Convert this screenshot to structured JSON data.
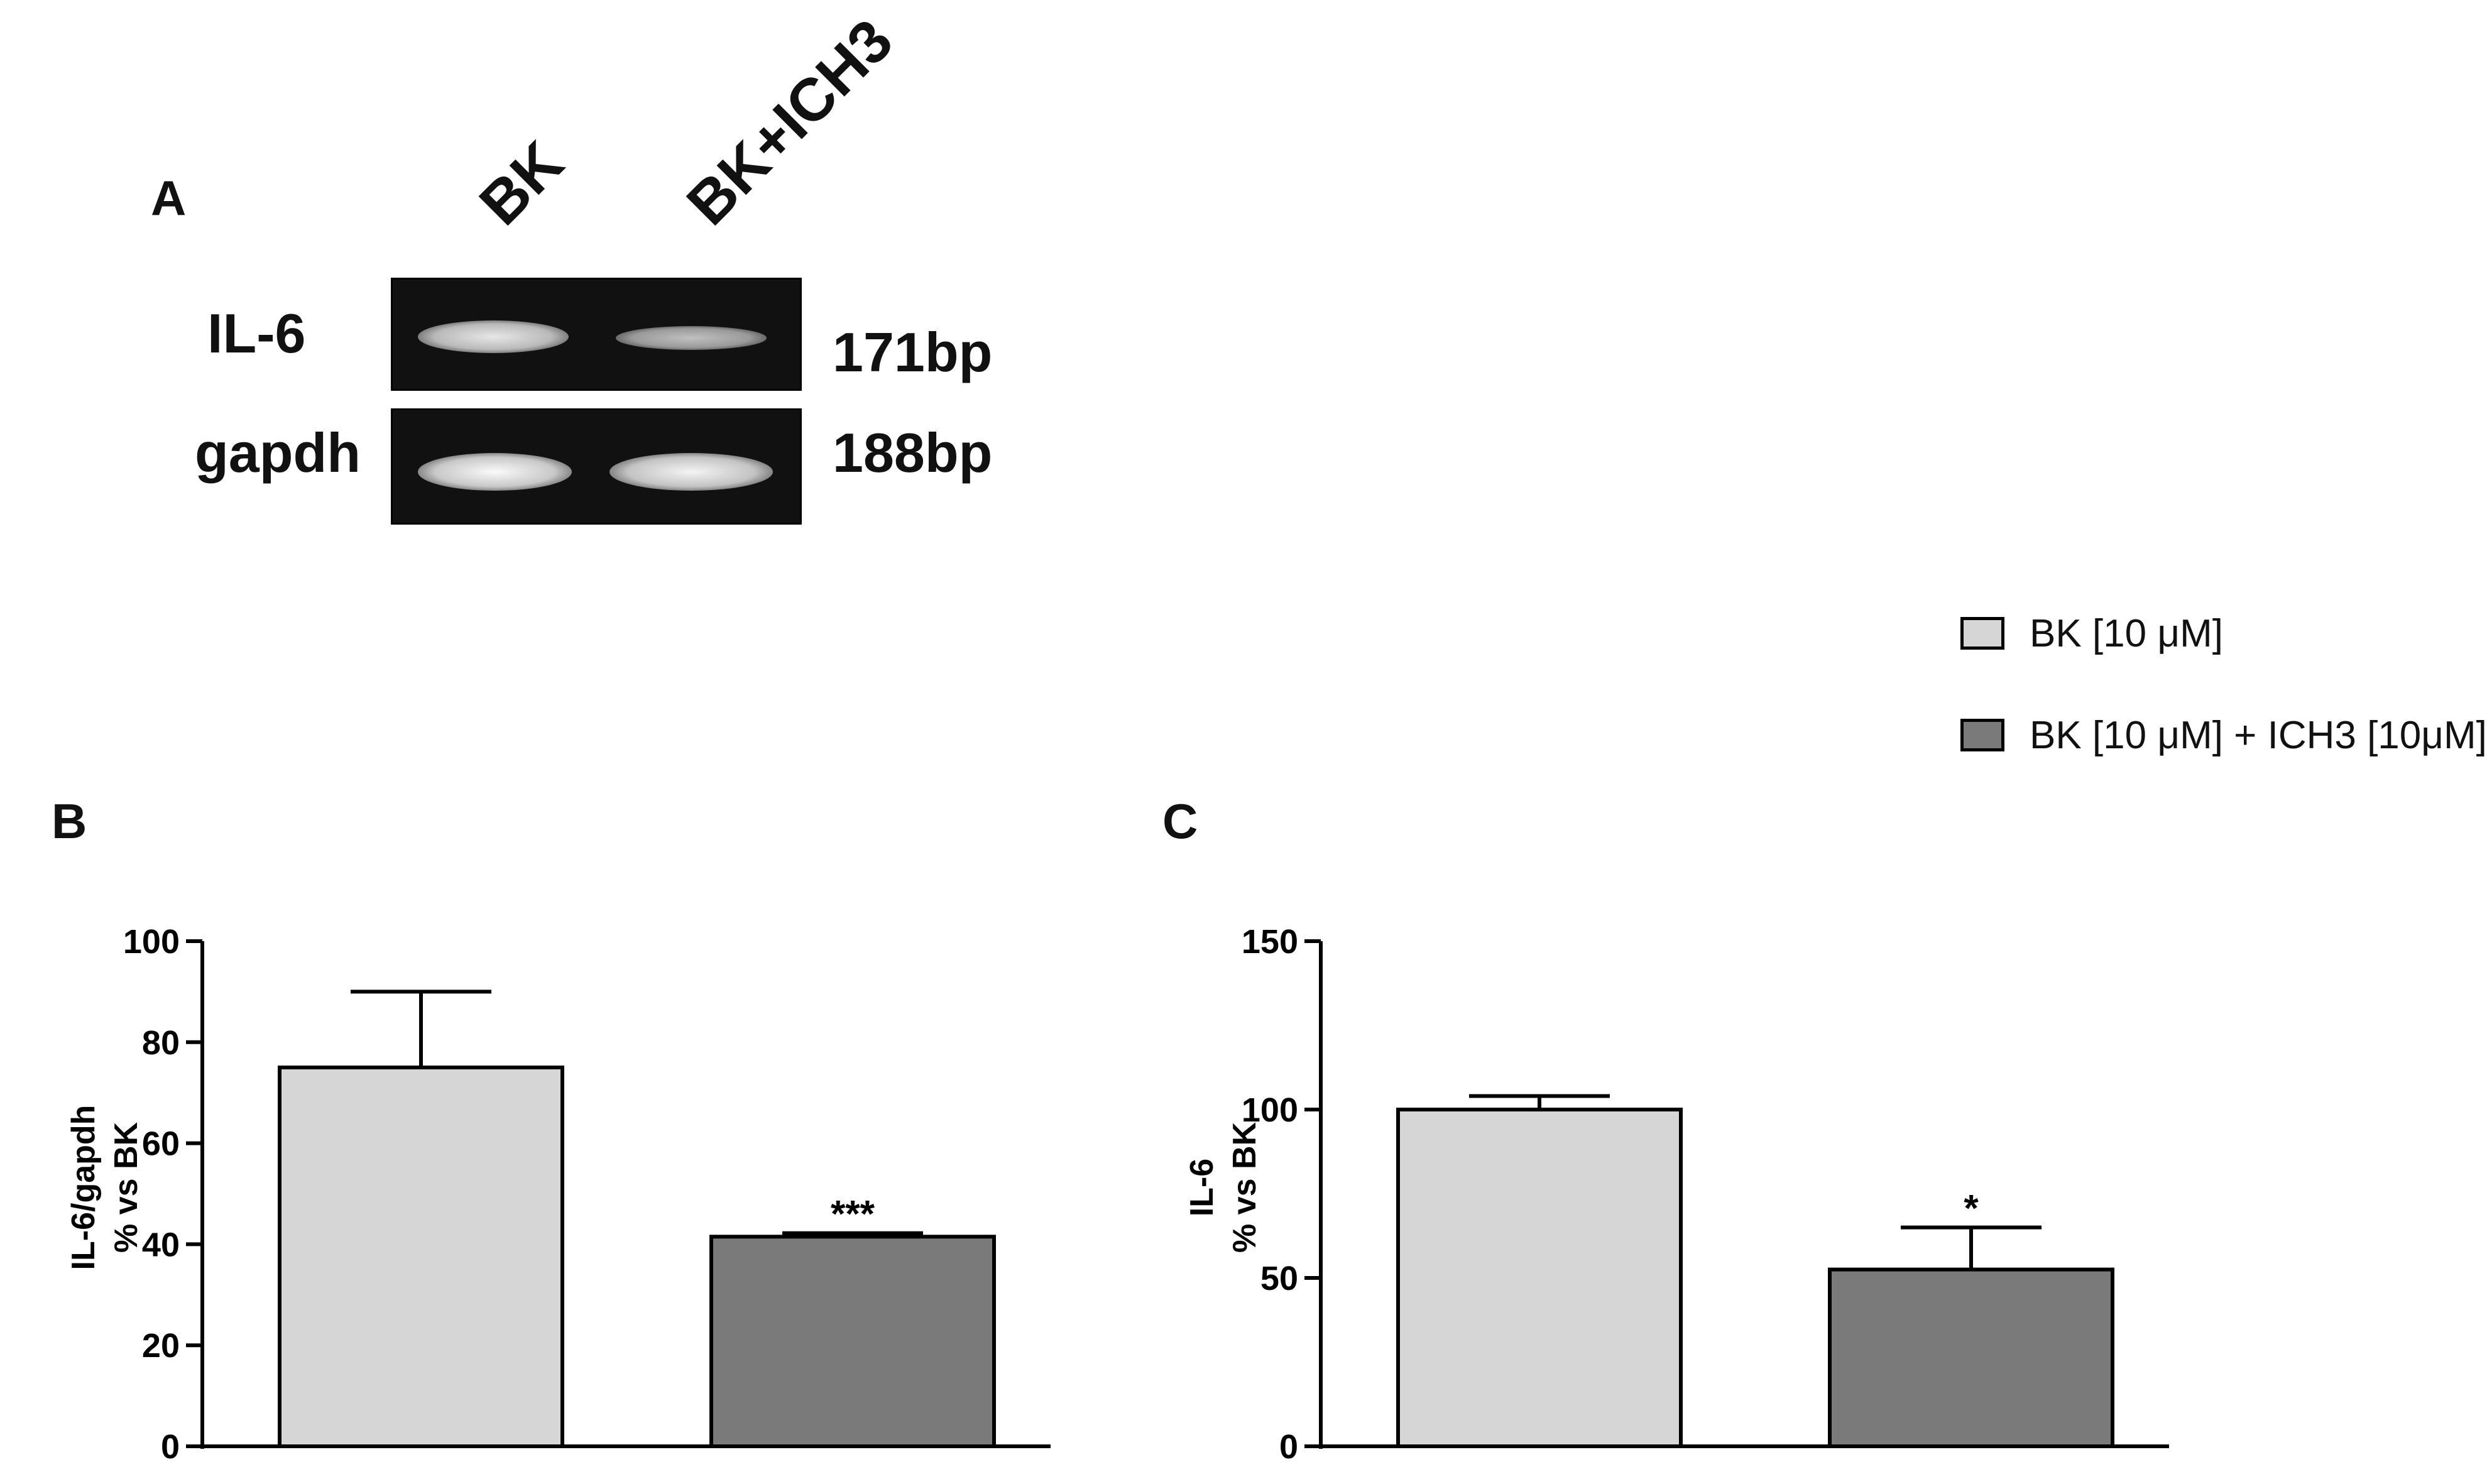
{
  "panel_a": {
    "letter": "A",
    "lanes": [
      "BK",
      "BK+ICH3"
    ],
    "rows": [
      {
        "gene": "IL-6",
        "size": "171bp",
        "intensities": [
          0.85,
          0.55
        ]
      },
      {
        "gene": "gapdh",
        "size": "188bp",
        "intensities": [
          1.0,
          0.95
        ]
      }
    ]
  },
  "legend": {
    "items": [
      {
        "label": "BK  [10 μM]",
        "color": "#d6d6d6"
      },
      {
        "label": "BK  [10 μM] + ICH3 [10μM]",
        "color": "#7a7a7a"
      }
    ]
  },
  "chart_data": [
    {
      "panel": "B",
      "type": "bar",
      "categories": [
        "BK [10 μM]",
        "BK [10 μM] + ICH3 [10μM]"
      ],
      "values": [
        75,
        41.5
      ],
      "errors": [
        15,
        0.7
      ],
      "significance": [
        "",
        "***"
      ],
      "colors": [
        "#d6d6d6",
        "#7a7a7a"
      ],
      "ylabel_lines": [
        "IL-6/gapdh",
        "% vs BK"
      ],
      "ylim": [
        0,
        100
      ],
      "yticks": [
        0,
        20,
        40,
        60,
        80,
        100
      ]
    },
    {
      "panel": "C",
      "type": "bar",
      "categories": [
        "BK [10 μM]",
        "BK [10 μM] + ICH3 [10μM]"
      ],
      "values": [
        100,
        52.5
      ],
      "errors": [
        4,
        12.5
      ],
      "significance": [
        "",
        "*"
      ],
      "colors": [
        "#d6d6d6",
        "#7a7a7a"
      ],
      "ylabel_lines": [
        "IL-6",
        "% vs BK"
      ],
      "ylim": [
        0,
        150
      ],
      "yticks": [
        0,
        50,
        100,
        150
      ]
    }
  ]
}
